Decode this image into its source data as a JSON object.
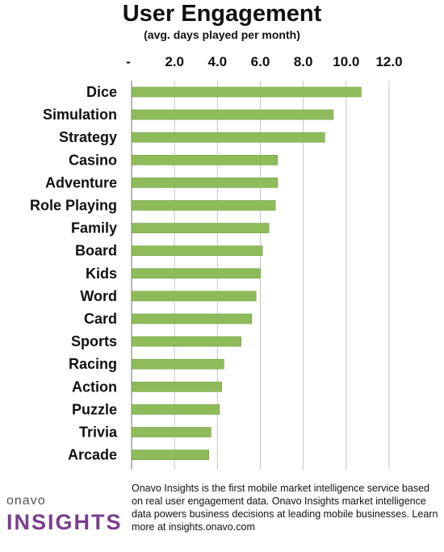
{
  "header": {
    "title": "User Engagement",
    "subtitle": "(avg. days played per month)"
  },
  "chart_data": {
    "type": "bar",
    "orientation": "horizontal",
    "title": "User Engagement",
    "subtitle": "(avg. days played per month)",
    "xlabel": "",
    "ylabel": "",
    "xlim": [
      0,
      12
    ],
    "x_ticks": [
      0,
      2,
      4,
      6,
      8,
      10,
      12
    ],
    "x_tick_labels": [
      "-",
      "2.0",
      "4.0",
      "6.0",
      "8.0",
      "10.0",
      "12.0"
    ],
    "axis_position": "top",
    "grid": true,
    "bar_color": "#8fbc5a",
    "categories": [
      "Dice",
      "Simulation",
      "Strategy",
      "Casino",
      "Adventure",
      "Role Playing",
      "Family",
      "Board",
      "Kids",
      "Word",
      "Card",
      "Sports",
      "Racing",
      "Action",
      "Puzzle",
      "Trivia",
      "Arcade"
    ],
    "values": [
      10.7,
      9.4,
      9.0,
      6.8,
      6.8,
      6.7,
      6.4,
      6.1,
      6.0,
      5.8,
      5.6,
      5.1,
      4.3,
      4.2,
      4.1,
      3.7,
      3.6
    ]
  },
  "footer": {
    "logo_small": "onavo",
    "logo_big": "INSIGHTS",
    "description": "Onavo Insights is the first mobile market intelligence service based on real user engagement data. Onavo Insights market intelligence data powers business decisions at leading mobile businesses. Learn more at insights.onavo.com"
  }
}
